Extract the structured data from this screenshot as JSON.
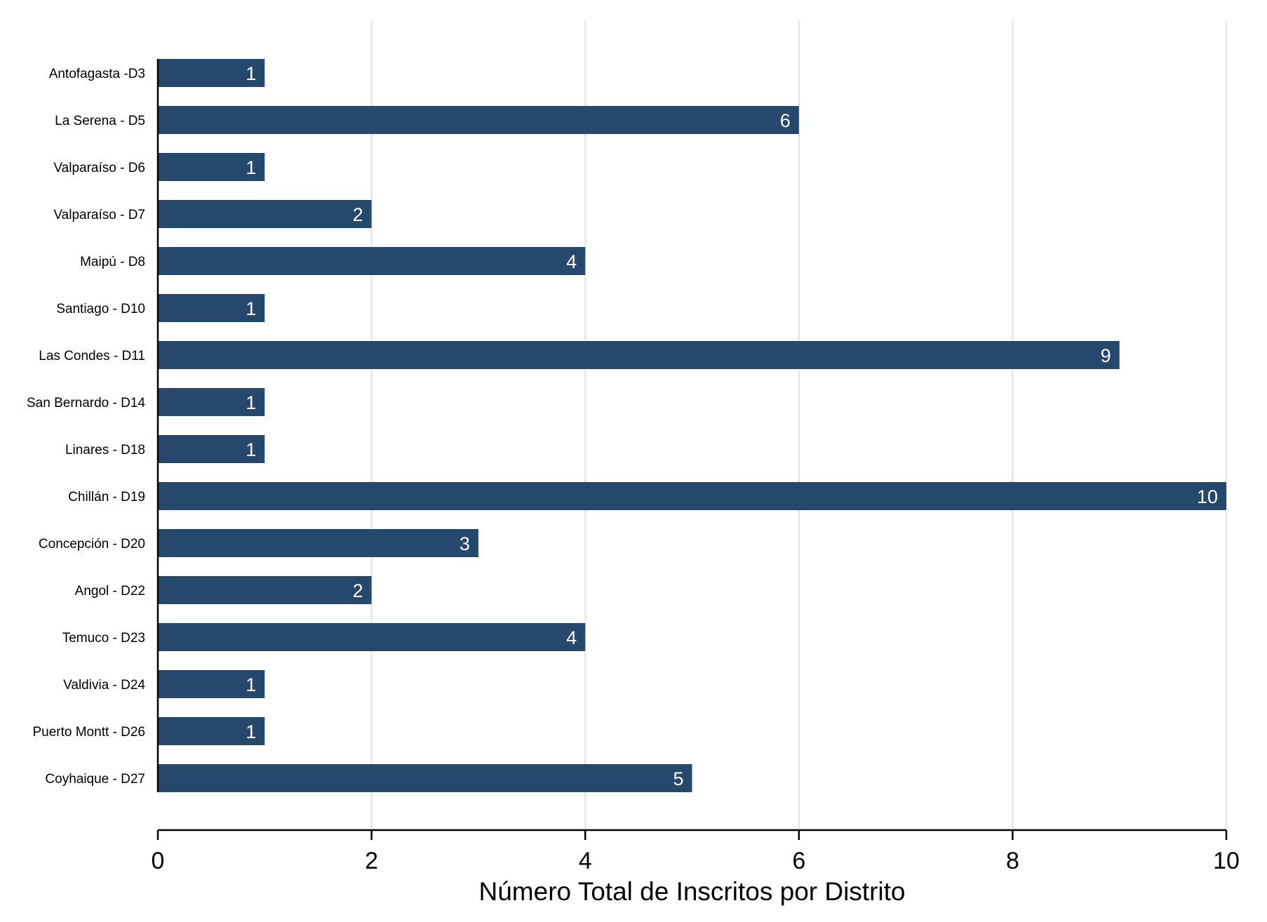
{
  "chart_data": {
    "type": "bar",
    "orientation": "horizontal",
    "categories": [
      "Antofagasta -D3",
      "La Serena - D5",
      "Valparaíso - D6",
      "Valparaíso - D7",
      "Maipú - D8",
      "Santiago - D10",
      "Las Condes - D11",
      "San Bernardo - D14",
      "Linares - D18",
      "Chillán - D19",
      "Concepción - D20",
      "Angol - D22",
      "Temuco - D23",
      "Valdivia - D24",
      "Puerto Montt - D26",
      "Coyhaique - D27"
    ],
    "values": [
      1,
      6,
      1,
      2,
      4,
      1,
      9,
      1,
      1,
      10,
      3,
      2,
      4,
      1,
      1,
      5
    ],
    "title": "",
    "xlabel": "Número Total de Inscritos por Distrito",
    "ylabel": "",
    "xlim": [
      0,
      10
    ],
    "xticks": [
      0,
      2,
      4,
      6,
      8,
      10
    ],
    "grid": true,
    "legend": "none",
    "data_labels": "inside-end",
    "colors": {
      "bar": "#26486D",
      "grid": "#E5E5E5",
      "axis": "#000000",
      "label_in_bar": "#FFFFFF"
    }
  }
}
